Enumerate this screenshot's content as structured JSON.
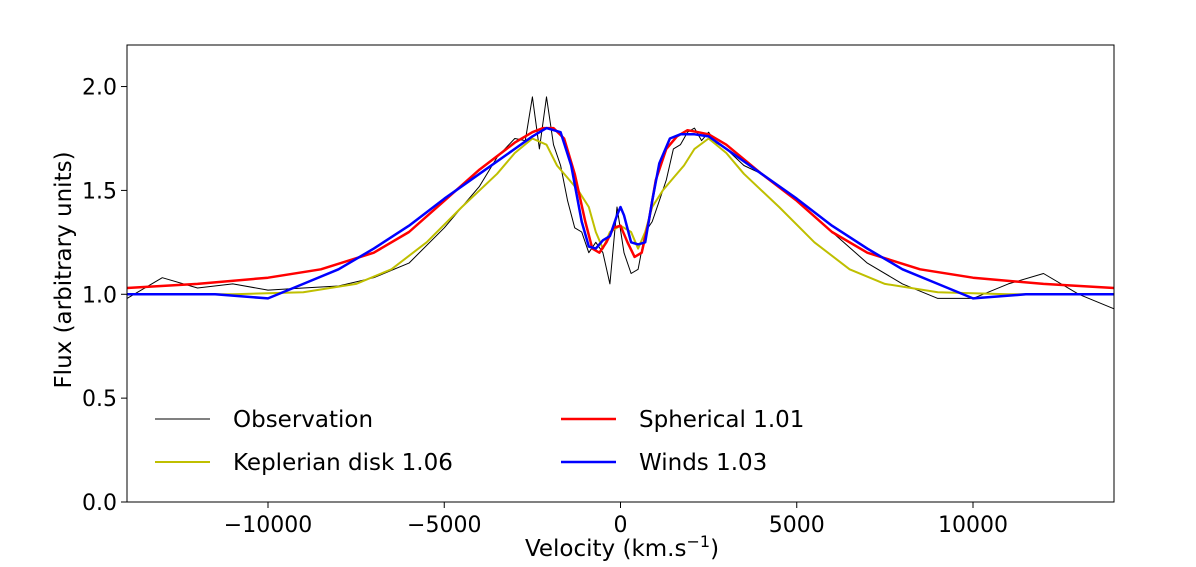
{
  "chart_data": {
    "type": "line",
    "xlabel": "Velocity (km.s",
    "xlabel_sup": "−1",
    "xlabel_end": ")",
    "ylabel": "Flux (arbitrary units)",
    "xlim": [
      -14000,
      14000
    ],
    "ylim": [
      0,
      2.2
    ],
    "xticks": [
      -10000,
      -5000,
      0,
      5000,
      10000
    ],
    "xtick_labels": [
      "−10000",
      "−5000",
      "0",
      "5000",
      "10000"
    ],
    "yticks": [
      0.0,
      0.5,
      1.0,
      1.5,
      2.0
    ],
    "ytick_labels": [
      "0.0",
      "0.5",
      "1.0",
      "1.5",
      "2.0"
    ],
    "legend_placement": "lower-left",
    "series": [
      {
        "name": "Observation",
        "color": "#000000",
        "x": [
          -14000,
          -13000,
          -12000,
          -11000,
          -10000,
          -9000,
          -8000,
          -7000,
          -6000,
          -5000,
          -4500,
          -4000,
          -3500,
          -3000,
          -2700,
          -2500,
          -2300,
          -2100,
          -1900,
          -1700,
          -1500,
          -1300,
          -1100,
          -900,
          -700,
          -500,
          -300,
          -100,
          100,
          300,
          500,
          700,
          900,
          1100,
          1300,
          1500,
          1700,
          1900,
          2100,
          2300,
          2500,
          2700,
          3000,
          3500,
          4000,
          4500,
          5000,
          6000,
          7000,
          8000,
          9000,
          10000,
          11000,
          12000,
          13000,
          14000
        ],
        "y": [
          0.98,
          1.08,
          1.03,
          1.05,
          1.02,
          1.03,
          1.04,
          1.08,
          1.15,
          1.32,
          1.42,
          1.52,
          1.66,
          1.75,
          1.74,
          1.95,
          1.7,
          1.95,
          1.72,
          1.62,
          1.45,
          1.32,
          1.3,
          1.2,
          1.25,
          1.2,
          1.05,
          1.42,
          1.2,
          1.1,
          1.12,
          1.3,
          1.35,
          1.45,
          1.55,
          1.7,
          1.72,
          1.78,
          1.8,
          1.74,
          1.78,
          1.73,
          1.7,
          1.62,
          1.58,
          1.52,
          1.45,
          1.3,
          1.15,
          1.05,
          0.98,
          0.98,
          1.05,
          1.1,
          1.0,
          0.93
        ]
      },
      {
        "name": "Keplerian disk  1.06",
        "color": "#bfbf00",
        "x": [
          -14000,
          -11000,
          -9000,
          -7500,
          -6500,
          -5500,
          -4500,
          -3500,
          -3000,
          -2500,
          -2100,
          -1800,
          -1500,
          -1200,
          -900,
          -700,
          -500,
          -300,
          0,
          300,
          500,
          700,
          900,
          1200,
          1500,
          1800,
          2100,
          2500,
          3000,
          3500,
          4500,
          5500,
          6500,
          7500,
          9000,
          11000,
          14000
        ],
        "y": [
          1.0,
          1.0,
          1.01,
          1.05,
          1.12,
          1.25,
          1.42,
          1.58,
          1.68,
          1.75,
          1.72,
          1.62,
          1.56,
          1.5,
          1.42,
          1.3,
          1.22,
          1.3,
          1.33,
          1.3,
          1.22,
          1.3,
          1.42,
          1.5,
          1.56,
          1.62,
          1.7,
          1.75,
          1.68,
          1.58,
          1.42,
          1.25,
          1.12,
          1.05,
          1.01,
          1.0,
          1.0
        ]
      },
      {
        "name": "Spherical  1.01",
        "color": "#ff0000",
        "x": [
          -14000,
          -12000,
          -10000,
          -8500,
          -7000,
          -6000,
          -5000,
          -4000,
          -3000,
          -2500,
          -2200,
          -1900,
          -1600,
          -1300,
          -1000,
          -800,
          -600,
          -400,
          -200,
          0,
          200,
          400,
          600,
          800,
          1000,
          1300,
          1600,
          1900,
          2200,
          2500,
          3000,
          4000,
          5000,
          6000,
          7000,
          8500,
          10000,
          12000,
          14000
        ],
        "y": [
          1.03,
          1.05,
          1.08,
          1.12,
          1.2,
          1.3,
          1.45,
          1.6,
          1.73,
          1.78,
          1.8,
          1.8,
          1.75,
          1.58,
          1.35,
          1.22,
          1.2,
          1.25,
          1.32,
          1.33,
          1.25,
          1.18,
          1.2,
          1.35,
          1.55,
          1.7,
          1.76,
          1.79,
          1.78,
          1.77,
          1.72,
          1.58,
          1.45,
          1.3,
          1.2,
          1.12,
          1.08,
          1.05,
          1.03
        ]
      },
      {
        "name": "Winds  1.03",
        "color": "#0000ff",
        "x": [
          -14000,
          -11500,
          -10000,
          -9000,
          -8000,
          -7000,
          -6000,
          -5000,
          -4000,
          -3000,
          -2500,
          -2100,
          -1700,
          -1400,
          -1100,
          -900,
          -700,
          -500,
          -300,
          -100,
          0,
          100,
          300,
          500,
          700,
          900,
          1100,
          1400,
          1700,
          2100,
          2500,
          3000,
          4000,
          5000,
          6000,
          7000,
          8000,
          9000,
          10000,
          11500,
          14000
        ],
        "y": [
          1.0,
          1.0,
          0.98,
          1.05,
          1.12,
          1.22,
          1.33,
          1.46,
          1.58,
          1.7,
          1.76,
          1.8,
          1.78,
          1.62,
          1.35,
          1.23,
          1.22,
          1.26,
          1.28,
          1.38,
          1.42,
          1.38,
          1.25,
          1.24,
          1.25,
          1.45,
          1.63,
          1.75,
          1.77,
          1.77,
          1.76,
          1.7,
          1.58,
          1.46,
          1.33,
          1.22,
          1.12,
          1.05,
          0.98,
          1.0,
          1.0
        ]
      }
    ]
  }
}
